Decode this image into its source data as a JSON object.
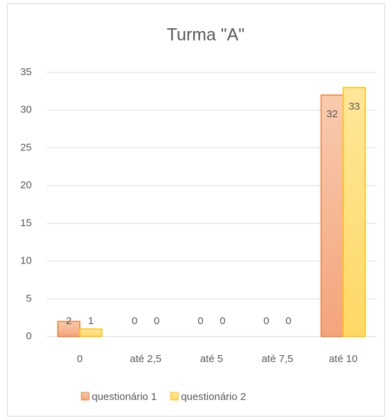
{
  "chart_data": {
    "type": "bar",
    "title": "Turma \"A\"",
    "categories": [
      "0",
      "até 2,5",
      "até 5",
      "até 7,5",
      "até 10"
    ],
    "series": [
      {
        "name": "questionário 1",
        "color": "#f4b183",
        "values": [
          2,
          0,
          0,
          0,
          32
        ]
      },
      {
        "name": "questionário 2",
        "color": "#ffd966",
        "values": [
          1,
          0,
          0,
          0,
          33
        ]
      }
    ],
    "ylim": [
      0,
      35
    ],
    "yticks": [
      0,
      5,
      10,
      15,
      20,
      25,
      30,
      35
    ],
    "grid": true,
    "legend": "bottom"
  }
}
